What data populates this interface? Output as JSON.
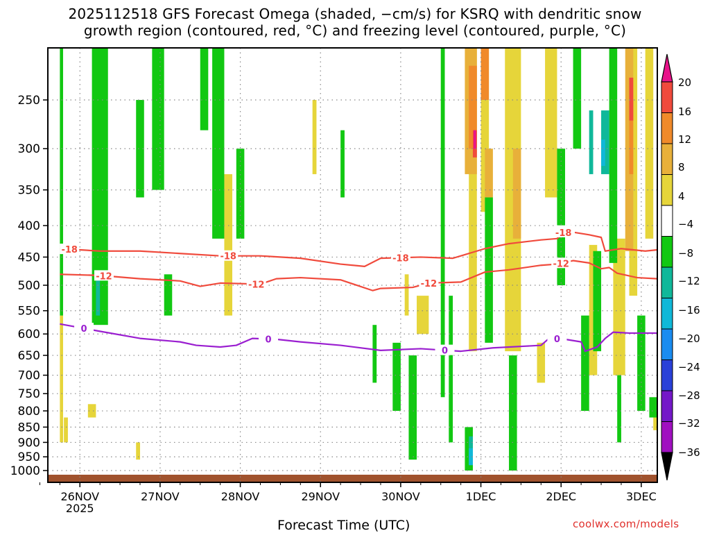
{
  "title_line1": "2025112518 GFS Forecast Omega (shaded, −cm/s) for KSRQ with dendritic snow",
  "title_line2": "growth region (contoured, red, °C) and freezing level (contoured, purple, °C)",
  "xlabel": "Forecast Time (UTC)",
  "credit": "coolwx.com/models",
  "colors": {
    "dgz": "#f04a3c",
    "freezing": "#9a1ed0",
    "ground": "#a0522d",
    "grid": "#888888"
  },
  "chart_data": {
    "type": "heatmap",
    "title": "2025112518 GFS Forecast Omega (shaded, −cm/s) for KSRQ with dendritic snow growth region (contoured, red, °C) and freezing level (contoured, purple, °C)",
    "xlabel": "Forecast Time (UTC)",
    "ylabel": "",
    "x_range": [
      "2025-11-25T18",
      "2025-12-03T08"
    ],
    "y_range": [
      1020,
      200
    ],
    "y_scale": "log-pressure",
    "grid": true,
    "x_ticks": [
      {
        "label": "26NOV",
        "sub": "2025",
        "t": 0.25
      },
      {
        "label": "27NOV",
        "sub": "",
        "t": 1.25
      },
      {
        "label": "28NOV",
        "sub": "",
        "t": 2.25
      },
      {
        "label": "29NOV",
        "sub": "",
        "t": 3.25
      },
      {
        "label": "30NOV",
        "sub": "",
        "t": 4.25
      },
      {
        "label": "1DEC",
        "sub": "",
        "t": 5.25
      },
      {
        "label": "2DEC",
        "sub": "",
        "t": 6.25
      },
      {
        "label": "3DEC",
        "sub": "",
        "t": 7.25
      }
    ],
    "y_ticks": [
      250,
      300,
      350,
      400,
      450,
      500,
      550,
      600,
      650,
      700,
      750,
      800,
      850,
      900,
      950,
      1000
    ],
    "colorbar": {
      "labels": [
        "20",
        "16",
        "12",
        "8",
        "4",
        "−4",
        "−8",
        "−12",
        "−16",
        "−20",
        "−24",
        "−28",
        "−32",
        "−36"
      ],
      "bins": [
        {
          "from": 20,
          "to": 24,
          "color": "#e8138a"
        },
        {
          "from": 16,
          "to": 20,
          "color": "#f04a3c"
        },
        {
          "from": 12,
          "to": 16,
          "color": "#f08a2a"
        },
        {
          "from": 8,
          "to": 12,
          "color": "#e8b03a"
        },
        {
          "from": 4,
          "to": 8,
          "color": "#e6d53a"
        },
        {
          "from": -4,
          "to": 4,
          "color": "#ffffff"
        },
        {
          "from": -8,
          "to": -4,
          "color": "#12c812"
        },
        {
          "from": -12,
          "to": -8,
          "color": "#10b89a"
        },
        {
          "from": -16,
          "to": -12,
          "color": "#10b8d8"
        },
        {
          "from": -20,
          "to": -16,
          "color": "#1a8cf0"
        },
        {
          "from": -24,
          "to": -20,
          "color": "#2a40d8"
        },
        {
          "from": -28,
          "to": -24,
          "color": "#7418c8"
        },
        {
          "from": -32,
          "to": -28,
          "color": "#a010c0"
        },
        {
          "from": -36,
          "to": -32,
          "color": "#a0a0a0"
        },
        {
          "from": -40,
          "to": -36,
          "color": "#000000"
        }
      ]
    },
    "contours": [
      {
        "label": "-18",
        "color": "#f04a3c",
        "label_t": [
          0.12,
          2.1,
          4.25,
          6.3,
          6.28
        ],
        "points": [
          [
            0,
            436
          ],
          [
            0.5,
            440
          ],
          [
            1,
            440
          ],
          [
            1.5,
            444
          ],
          [
            2,
            448
          ],
          [
            2.5,
            448
          ],
          [
            3,
            452
          ],
          [
            3.5,
            462
          ],
          [
            3.8,
            466
          ],
          [
            4,
            452
          ],
          [
            4.5,
            450
          ],
          [
            4.9,
            452
          ],
          [
            5,
            448
          ],
          [
            5.3,
            436
          ],
          [
            5.6,
            428
          ],
          [
            6,
            422
          ],
          [
            6.2,
            420
          ],
          [
            6.3,
            408
          ],
          [
            6.6,
            414
          ],
          [
            6.75,
            418
          ],
          [
            6.8,
            440
          ],
          [
            7,
            436
          ],
          [
            7.3,
            440
          ],
          [
            7.45,
            438
          ]
        ]
      },
      {
        "label": "-12",
        "color": "#f04a3c",
        "label_t": [
          0.55,
          2.45,
          4.6,
          6.25
        ],
        "points": [
          [
            0,
            480
          ],
          [
            0.5,
            482
          ],
          [
            1,
            488
          ],
          [
            1.5,
            492
          ],
          [
            1.75,
            502
          ],
          [
            2,
            496
          ],
          [
            2.5,
            498
          ],
          [
            2.7,
            488
          ],
          [
            3,
            486
          ],
          [
            3.5,
            490
          ],
          [
            3.9,
            510
          ],
          [
            4,
            506
          ],
          [
            4.4,
            504
          ],
          [
            4.6,
            496
          ],
          [
            5,
            494
          ],
          [
            5.3,
            476
          ],
          [
            5.6,
            472
          ],
          [
            6,
            464
          ],
          [
            6.2,
            462
          ],
          [
            6.4,
            456
          ],
          [
            6.6,
            460
          ],
          [
            6.75,
            470
          ],
          [
            6.85,
            468
          ],
          [
            6.95,
            478
          ],
          [
            7.2,
            486
          ],
          [
            7.45,
            488
          ]
        ]
      },
      {
        "label": "0",
        "color": "#9a1ed0",
        "label_t": [
          0.3,
          2.6,
          4.8,
          6.2
        ],
        "points": [
          [
            0,
            578
          ],
          [
            0.5,
            594
          ],
          [
            1,
            610
          ],
          [
            1.5,
            618
          ],
          [
            1.7,
            626
          ],
          [
            2,
            630
          ],
          [
            2.2,
            626
          ],
          [
            2.4,
            610
          ],
          [
            2.7,
            612
          ],
          [
            3,
            618
          ],
          [
            3.5,
            626
          ],
          [
            4,
            638
          ],
          [
            4.5,
            634
          ],
          [
            5,
            640
          ],
          [
            5.4,
            632
          ],
          [
            5.8,
            628
          ],
          [
            6,
            626
          ],
          [
            6.1,
            610
          ],
          [
            6.3,
            612
          ],
          [
            6.5,
            618
          ],
          [
            6.55,
            640
          ],
          [
            6.7,
            630
          ],
          [
            6.8,
            610
          ],
          [
            6.9,
            596
          ],
          [
            7.1,
            598
          ],
          [
            7.45,
            598
          ]
        ]
      }
    ],
    "series": [
      {
        "omega": 5,
        "cells": [
          [
            0.0,
            0.04,
            [
              560,
              900
            ]
          ],
          [
            0.05,
            0.1,
            [
              820,
              900
            ]
          ],
          [
            0.35,
            0.45,
            [
              780,
              820
            ]
          ],
          [
            0.95,
            1.0,
            [
              900,
              960
            ]
          ],
          [
            2.05,
            2.15,
            [
              330,
              560
            ]
          ],
          [
            3.15,
            3.2,
            [
              250,
              330
            ]
          ],
          [
            4.3,
            4.35,
            [
              480,
              560
            ]
          ],
          [
            4.45,
            4.6,
            [
              520,
              600
            ]
          ],
          [
            5.1,
            5.2,
            [
              200,
              640
            ]
          ],
          [
            5.25,
            5.35,
            [
              200,
              380
            ]
          ],
          [
            5.55,
            5.75,
            [
              200,
              640
            ]
          ],
          [
            5.95,
            6.05,
            [
              620,
              720
            ]
          ],
          [
            6.05,
            6.2,
            [
              200,
              360
            ]
          ],
          [
            6.6,
            6.7,
            [
              430,
              700
            ]
          ],
          [
            6.9,
            7.05,
            [
              420,
              700
            ]
          ],
          [
            7.1,
            7.2,
            [
              200,
              520
            ]
          ],
          [
            7.3,
            7.4,
            [
              200,
              420
            ]
          ],
          [
            7.4,
            7.45,
            [
              800,
              860
            ]
          ]
        ]
      },
      {
        "omega": 10,
        "cells": [
          [
            5.05,
            5.2,
            [
              200,
              330
            ]
          ],
          [
            5.3,
            5.4,
            [
              300,
              360
            ]
          ],
          [
            5.65,
            5.75,
            [
              300,
              420
            ]
          ],
          [
            7.05,
            7.15,
            [
              200,
              440
            ]
          ]
        ]
      },
      {
        "omega": 14,
        "cells": [
          [
            5.1,
            5.2,
            [
              220,
              300
            ]
          ],
          [
            5.25,
            5.35,
            [
              200,
              250
            ]
          ],
          [
            7.1,
            7.15,
            [
              250,
              330
            ]
          ]
        ]
      },
      {
        "omega": 18,
        "cells": [
          [
            5.15,
            5.2,
            [
              280,
              310
            ]
          ],
          [
            7.1,
            7.15,
            [
              230,
              270
            ]
          ]
        ]
      },
      {
        "omega": 22,
        "cells": [
          [
            5.16,
            5.19,
            [
              280,
              300
            ]
          ]
        ]
      },
      {
        "omega": -6,
        "cells": [
          [
            0.0,
            0.04,
            [
              200,
              560
            ]
          ],
          [
            0.4,
            0.6,
            [
              200,
              580
            ]
          ],
          [
            0.95,
            1.05,
            [
              250,
              360
            ]
          ],
          [
            1.15,
            1.3,
            [
              200,
              350
            ]
          ],
          [
            1.3,
            1.4,
            [
              480,
              560
            ]
          ],
          [
            1.75,
            1.85,
            [
              200,
              280
            ]
          ],
          [
            1.9,
            2.05,
            [
              200,
              420
            ]
          ],
          [
            2.2,
            2.3,
            [
              300,
              420
            ]
          ],
          [
            3.5,
            3.55,
            [
              280,
              360
            ]
          ],
          [
            3.9,
            3.95,
            [
              580,
              720
            ]
          ],
          [
            4.15,
            4.25,
            [
              620,
              800
            ]
          ],
          [
            4.35,
            4.45,
            [
              650,
              960
            ]
          ],
          [
            4.75,
            4.8,
            [
              200,
              760
            ]
          ],
          [
            4.85,
            4.9,
            [
              520,
              900
            ]
          ],
          [
            5.05,
            5.15,
            [
              850,
              1000
            ]
          ],
          [
            5.3,
            5.4,
            [
              360,
              620
            ]
          ],
          [
            5.6,
            5.7,
            [
              650,
              1000
            ]
          ],
          [
            6.2,
            6.3,
            [
              300,
              500
            ]
          ],
          [
            6.4,
            6.5,
            [
              200,
              300
            ]
          ],
          [
            6.5,
            6.6,
            [
              560,
              800
            ]
          ],
          [
            6.65,
            6.75,
            [
              440,
              640
            ]
          ],
          [
            6.85,
            6.95,
            [
              200,
              460
            ]
          ],
          [
            6.95,
            7.0,
            [
              700,
              900
            ]
          ],
          [
            7.2,
            7.3,
            [
              560,
              800
            ]
          ],
          [
            7.35,
            7.45,
            [
              760,
              820
            ]
          ]
        ]
      },
      {
        "omega": -10,
        "cells": [
          [
            0.45,
            0.5,
            [
              480,
              560
            ]
          ],
          [
            5.1,
            5.15,
            [
              880,
              980
            ]
          ],
          [
            6.6,
            6.65,
            [
              260,
              330
            ]
          ],
          [
            6.75,
            6.85,
            [
              260,
              330
            ]
          ]
        ]
      },
      {
        "omega": -14,
        "cells": [
          [
            5.1,
            5.15,
            [
              920,
              980
            ]
          ],
          [
            6.75,
            6.8,
            [
              290,
              320
            ]
          ]
        ]
      }
    ]
  }
}
